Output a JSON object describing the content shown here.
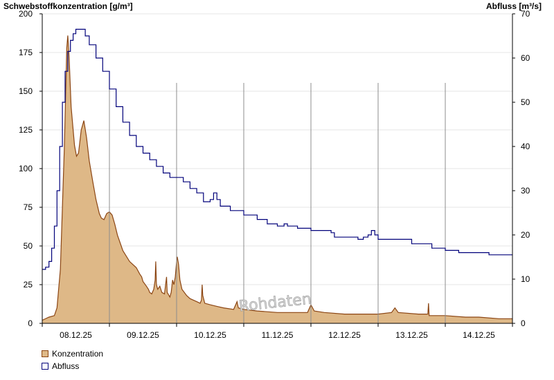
{
  "chart_data": {
    "type": "area",
    "y_label_left": "Schwebstoffkonzentration [g/m³]",
    "y_label_right": "Abfluss [m³/s]",
    "ylim_left": [
      0,
      200
    ],
    "ylim_right": [
      0,
      70
    ],
    "yticks_left": [
      0,
      25,
      50,
      75,
      100,
      125,
      150,
      175,
      200
    ],
    "yticks_right": [
      0,
      10,
      20,
      30,
      40,
      50,
      60,
      70
    ],
    "xlim": [
      0,
      7
    ],
    "x_ticks": [
      {
        "x": 0.5,
        "label": "08.12.25"
      },
      {
        "x": 1.5,
        "label": "09.12.25"
      },
      {
        "x": 2.5,
        "label": "10.12.25"
      },
      {
        "x": 3.5,
        "label": "11.12.25"
      },
      {
        "x": 4.5,
        "label": "12.12.25"
      },
      {
        "x": 5.5,
        "label": "13.12.25"
      },
      {
        "x": 6.5,
        "label": "14.12.25"
      }
    ],
    "day_boundaries": [
      1,
      2,
      3,
      4,
      5,
      6
    ],
    "grid": true,
    "watermark": "Rohdaten",
    "series": [
      {
        "name": "Konzentration",
        "axis": "left",
        "render": "area",
        "color": "#deb887",
        "edge_color": "#8b4513",
        "points": [
          [
            0.0,
            2
          ],
          [
            0.1,
            4
          ],
          [
            0.18,
            5
          ],
          [
            0.22,
            10
          ],
          [
            0.27,
            35
          ],
          [
            0.3,
            75
          ],
          [
            0.33,
            115
          ],
          [
            0.35,
            150
          ],
          [
            0.365,
            178
          ],
          [
            0.38,
            186
          ],
          [
            0.4,
            172
          ],
          [
            0.43,
            140
          ],
          [
            0.48,
            115
          ],
          [
            0.51,
            108
          ],
          [
            0.54,
            110
          ],
          [
            0.58,
            125
          ],
          [
            0.62,
            131
          ],
          [
            0.66,
            120
          ],
          [
            0.7,
            105
          ],
          [
            0.75,
            92
          ],
          [
            0.8,
            80
          ],
          [
            0.85,
            71
          ],
          [
            0.88,
            68
          ],
          [
            0.92,
            67
          ],
          [
            0.96,
            71
          ],
          [
            1.0,
            72
          ],
          [
            1.04,
            70
          ],
          [
            1.08,
            64
          ],
          [
            1.12,
            57
          ],
          [
            1.16,
            52
          ],
          [
            1.2,
            47
          ],
          [
            1.3,
            40
          ],
          [
            1.4,
            36
          ],
          [
            1.45,
            32
          ],
          [
            1.48,
            30
          ],
          [
            1.5,
            27
          ],
          [
            1.55,
            24
          ],
          [
            1.58,
            22
          ],
          [
            1.6,
            20
          ],
          [
            1.63,
            19
          ],
          [
            1.66,
            22
          ],
          [
            1.68,
            28
          ],
          [
            1.69,
            40
          ],
          [
            1.7,
            25
          ],
          [
            1.72,
            22
          ],
          [
            1.75,
            24
          ],
          [
            1.78,
            20
          ],
          [
            1.82,
            19
          ],
          [
            1.85,
            30
          ],
          [
            1.86,
            20
          ],
          [
            1.9,
            17
          ],
          [
            1.92,
            20
          ],
          [
            1.94,
            28
          ],
          [
            1.96,
            25
          ],
          [
            1.98,
            30
          ],
          [
            2.0,
            40
          ],
          [
            2.01,
            43
          ],
          [
            2.03,
            38
          ],
          [
            2.05,
            28
          ],
          [
            2.08,
            22
          ],
          [
            2.15,
            18
          ],
          [
            2.2,
            16
          ],
          [
            2.3,
            14
          ],
          [
            2.35,
            13
          ],
          [
            2.37,
            15
          ],
          [
            2.38,
            25
          ],
          [
            2.39,
            18
          ],
          [
            2.42,
            13
          ],
          [
            2.5,
            12
          ],
          [
            2.6,
            11
          ],
          [
            2.7,
            10
          ],
          [
            2.85,
            9
          ],
          [
            2.9,
            14
          ],
          [
            2.92,
            10
          ],
          [
            3.0,
            9
          ],
          [
            3.2,
            8
          ],
          [
            3.5,
            7
          ],
          [
            3.95,
            7
          ],
          [
            4.0,
            12
          ],
          [
            4.05,
            8
          ],
          [
            4.2,
            7
          ],
          [
            4.5,
            6
          ],
          [
            5.0,
            6
          ],
          [
            5.2,
            7
          ],
          [
            5.25,
            10
          ],
          [
            5.3,
            7
          ],
          [
            5.6,
            6
          ],
          [
            5.74,
            6
          ],
          [
            5.75,
            13
          ],
          [
            5.76,
            5
          ],
          [
            6.0,
            5
          ],
          [
            6.3,
            4
          ],
          [
            6.5,
            4
          ],
          [
            6.8,
            3
          ],
          [
            7.0,
            3
          ]
        ]
      },
      {
        "name": "Abfluss",
        "axis": "right",
        "render": "step",
        "color": "#00007a",
        "points": [
          [
            0.0,
            12.2
          ],
          [
            0.05,
            12.7
          ],
          [
            0.1,
            14.0
          ],
          [
            0.14,
            17.0
          ],
          [
            0.18,
            22.0
          ],
          [
            0.22,
            30.0
          ],
          [
            0.26,
            40.0
          ],
          [
            0.3,
            50.0
          ],
          [
            0.34,
            57.0
          ],
          [
            0.38,
            61.5
          ],
          [
            0.42,
            64.0
          ],
          [
            0.46,
            65.5
          ],
          [
            0.5,
            66.5
          ],
          [
            0.6,
            66.5
          ],
          [
            0.64,
            65.0
          ],
          [
            0.7,
            63.0
          ],
          [
            0.8,
            60.0
          ],
          [
            0.9,
            57.0
          ],
          [
            1.0,
            53.0
          ],
          [
            1.1,
            49.0
          ],
          [
            1.2,
            45.5
          ],
          [
            1.3,
            42.5
          ],
          [
            1.4,
            40.0
          ],
          [
            1.5,
            38.5
          ],
          [
            1.6,
            37.0
          ],
          [
            1.7,
            35.5
          ],
          [
            1.8,
            34.0
          ],
          [
            1.9,
            33.0
          ],
          [
            2.0,
            33.0
          ],
          [
            2.1,
            32.0
          ],
          [
            2.2,
            30.5
          ],
          [
            2.3,
            29.5
          ],
          [
            2.4,
            27.5
          ],
          [
            2.5,
            28.0
          ],
          [
            2.55,
            29.5
          ],
          [
            2.6,
            28.0
          ],
          [
            2.65,
            26.5
          ],
          [
            2.8,
            25.5
          ],
          [
            3.0,
            24.5
          ],
          [
            3.2,
            23.5
          ],
          [
            3.35,
            22.5
          ],
          [
            3.5,
            22.0
          ],
          [
            3.6,
            22.5
          ],
          [
            3.65,
            22.0
          ],
          [
            3.8,
            21.5
          ],
          [
            4.0,
            21.0
          ],
          [
            4.2,
            21.0
          ],
          [
            4.3,
            20.5
          ],
          [
            4.35,
            19.5
          ],
          [
            4.6,
            19.5
          ],
          [
            4.7,
            19.0
          ],
          [
            4.78,
            19.5
          ],
          [
            4.85,
            20.0
          ],
          [
            4.9,
            21.0
          ],
          [
            4.95,
            20.0
          ],
          [
            5.0,
            19.0
          ],
          [
            5.3,
            19.0
          ],
          [
            5.5,
            18.0
          ],
          [
            5.8,
            17.0
          ],
          [
            6.0,
            16.5
          ],
          [
            6.1,
            16.5
          ],
          [
            6.2,
            16.0
          ],
          [
            6.6,
            16.0
          ],
          [
            6.65,
            15.5
          ],
          [
            7.0,
            15.5
          ]
        ]
      }
    ]
  },
  "legend": [
    {
      "label": "Konzentration",
      "fill": "#deb887",
      "border": "#8b4513"
    },
    {
      "label": "Abfluss",
      "fill": "#ffffff",
      "border": "#00007a"
    }
  ]
}
